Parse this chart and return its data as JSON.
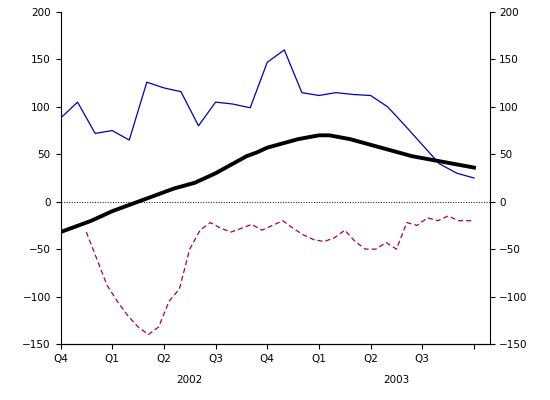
{
  "blue_line_x": [
    0,
    0.33,
    0.67,
    1,
    1.33,
    1.67,
    2,
    2.33,
    2.67,
    3,
    3.33,
    3.67,
    4,
    4.33,
    4.67,
    5,
    5.33,
    5.67,
    6,
    6.33,
    6.67,
    7,
    7.33,
    7.67,
    8
  ],
  "blue_line_y": [
    88,
    105,
    72,
    75,
    65,
    126,
    120,
    116,
    80,
    105,
    103,
    99,
    147,
    160,
    115,
    112,
    115,
    113,
    112,
    100,
    80,
    60,
    40,
    30,
    25
  ],
  "black_line_x": [
    0,
    0.2,
    0.4,
    0.6,
    0.8,
    1,
    1.2,
    1.4,
    1.6,
    1.8,
    2,
    2.2,
    2.4,
    2.6,
    2.8,
    3,
    3.2,
    3.4,
    3.6,
    3.8,
    4,
    4.2,
    4.4,
    4.6,
    4.8,
    5,
    5.2,
    5.4,
    5.6,
    5.8,
    6,
    6.2,
    6.4,
    6.6,
    6.8,
    7,
    7.2,
    7.4,
    7.6,
    7.8,
    8
  ],
  "black_line_y": [
    -32,
    -28,
    -24,
    -20,
    -15,
    -10,
    -6,
    -2,
    2,
    6,
    10,
    14,
    17,
    20,
    25,
    30,
    36,
    42,
    48,
    52,
    57,
    60,
    63,
    66,
    68,
    70,
    70,
    68,
    66,
    63,
    60,
    57,
    54,
    51,
    48,
    46,
    44,
    42,
    40,
    38,
    36
  ],
  "red_line_x": [
    0.5,
    0.7,
    0.9,
    1.1,
    1.3,
    1.5,
    1.7,
    1.9,
    2.1,
    2.3,
    2.5,
    2.7,
    2.9,
    3.1,
    3.3,
    3.5,
    3.7,
    3.9,
    4.1,
    4.3,
    4.5,
    4.7,
    4.9,
    5.1,
    5.3,
    5.5,
    5.7,
    5.9,
    6.1,
    6.3,
    6.5,
    6.7,
    6.9,
    7.1,
    7.3,
    7.5,
    7.7,
    7.9,
    8.0
  ],
  "red_line_y": [
    -32,
    -60,
    -88,
    -105,
    -120,
    -132,
    -140,
    -132,
    -105,
    -92,
    -50,
    -30,
    -22,
    -28,
    -32,
    -28,
    -24,
    -30,
    -25,
    -20,
    -28,
    -35,
    -40,
    -42,
    -38,
    -30,
    -42,
    -50,
    -50,
    -43,
    -50,
    -22,
    -25,
    -17,
    -20,
    -15,
    -20,
    -20,
    -20
  ],
  "ylim": [
    -150,
    200
  ],
  "xlim": [
    0,
    8.3
  ],
  "yticks": [
    -150,
    -100,
    -50,
    0,
    50,
    100,
    150,
    200
  ],
  "quarter_ticks": [
    0,
    1,
    2,
    3,
    4,
    5,
    6,
    7,
    8
  ],
  "quarter_labels": [
    "Q4",
    "Q1",
    "Q2",
    "Q3",
    "Q4",
    "Q1",
    "Q2",
    "Q3",
    ""
  ],
  "year_2002_x": 2.5,
  "year_2003_x": 6.5,
  "blue_color": "#0000bb",
  "black_color": "#000000",
  "red_color": "#aa0033",
  "bg_color": "#ffffff"
}
